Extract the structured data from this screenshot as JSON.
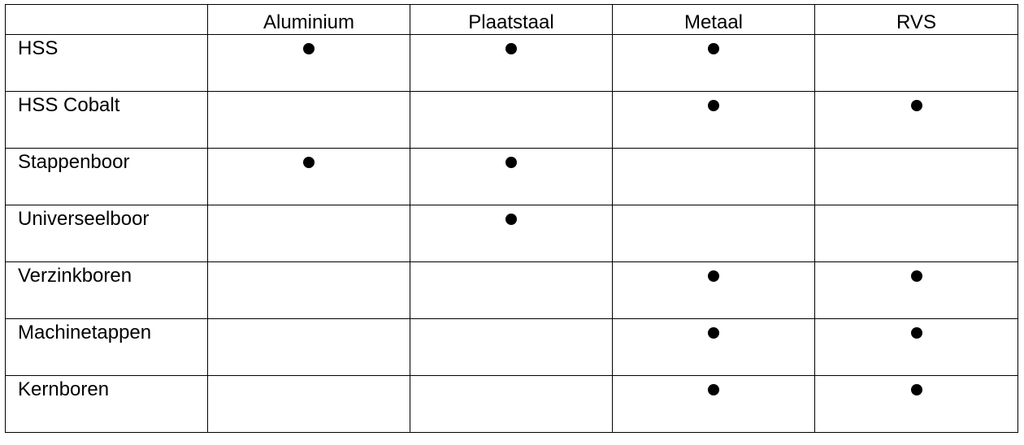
{
  "table": {
    "corner": "",
    "columns": [
      "Aluminium",
      "Plaatstaal",
      "Metaal",
      "RVS"
    ],
    "marker": "●",
    "rows": [
      {
        "label": "HSS",
        "cells": [
          true,
          true,
          true,
          false
        ]
      },
      {
        "label": "HSS Cobalt",
        "cells": [
          false,
          false,
          true,
          true
        ]
      },
      {
        "label": "Stappenboor",
        "cells": [
          true,
          true,
          false,
          false
        ]
      },
      {
        "label": "Universeelboor",
        "cells": [
          false,
          true,
          false,
          false
        ]
      },
      {
        "label": "Verzinkboren",
        "cells": [
          false,
          false,
          true,
          true
        ]
      },
      {
        "label": "Machinetappen",
        "cells": [
          false,
          false,
          true,
          true
        ]
      },
      {
        "label": "Kernboren",
        "cells": [
          false,
          false,
          true,
          true
        ]
      }
    ]
  }
}
